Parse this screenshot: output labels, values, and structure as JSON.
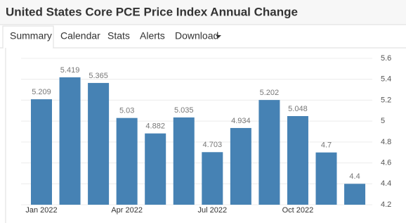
{
  "tabs": [
    "Summary",
    "Calendar",
    "Stats",
    "Alerts",
    "Download"
  ],
  "chart_data": {
    "type": "bar",
    "title": "United States Core PCE Price Index Annual Change",
    "categories": [
      "Jan 2022",
      null,
      null,
      "Apr 2022",
      null,
      null,
      "Jul 2022",
      null,
      null,
      "Oct 2022",
      null,
      null
    ],
    "values": [
      5.209,
      5.419,
      5.365,
      5.03,
      4.882,
      5.035,
      4.703,
      4.934,
      5.202,
      5.048,
      4.7,
      4.4
    ],
    "color": "#4682b4",
    "ylim": [
      4.2,
      5.6
    ],
    "yticks": [
      4.2,
      4.4,
      4.6,
      4.8,
      5,
      5.2,
      5.4,
      5.6
    ],
    "grid": true
  }
}
